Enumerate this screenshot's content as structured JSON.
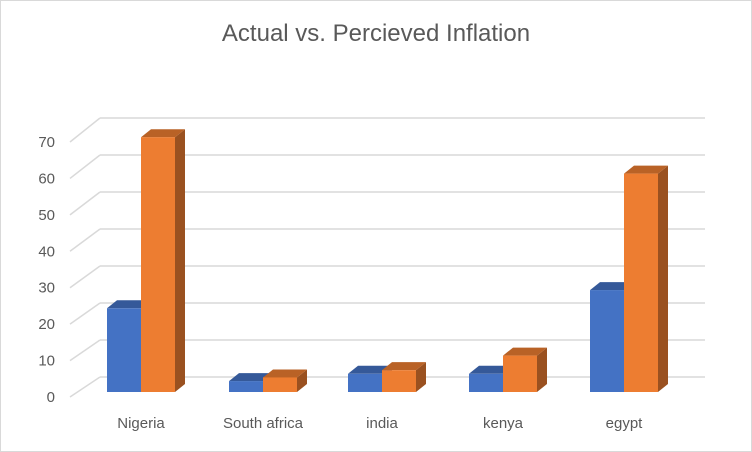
{
  "chart_data": {
    "type": "bar",
    "subtype": "3d-clustered-column",
    "title": "Actual vs. Percieved Inflation",
    "categories": [
      "Nigeria",
      "South africa",
      "india",
      "kenya",
      "egypt"
    ],
    "series": [
      {
        "values": [
          23,
          3,
          5,
          5,
          28
        ],
        "color": "#4472C4"
      },
      {
        "values": [
          70,
          4,
          6,
          10,
          60
        ],
        "color": "#ED7D31"
      }
    ],
    "yticks": [
      0,
      10,
      20,
      30,
      40,
      50,
      60,
      70
    ],
    "ylim": [
      0,
      70
    ],
    "grid": true,
    "legend": "none",
    "xlabel": "",
    "ylabel": ""
  }
}
